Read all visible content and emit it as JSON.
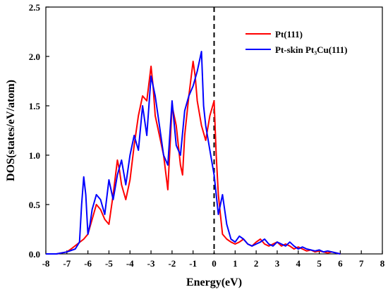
{
  "chart_data": {
    "type": "line",
    "title": "",
    "xlabel": "Energy(eV)",
    "ylabel": "DOS(states/eV/atom)",
    "xlim": [
      -8,
      8
    ],
    "ylim": [
      0,
      2.5
    ],
    "xticks": [
      -8,
      -7,
      -6,
      -5,
      -4,
      -3,
      -2,
      -1,
      0,
      1,
      2,
      3,
      4,
      5,
      6,
      7,
      8
    ],
    "yticks": [
      0.0,
      0.5,
      1.0,
      1.5,
      2.0,
      2.5
    ],
    "ytick_labels": [
      "0.0",
      "0.5",
      "1.0",
      "1.5",
      "2.0",
      "2.5"
    ],
    "fermi_line_x": 0,
    "grid": false,
    "legend_position": "top-right",
    "series": [
      {
        "name": "Pt(111)",
        "color": "#ff0000",
        "x": [
          -8.0,
          -7.5,
          -7.0,
          -6.8,
          -6.5,
          -6.2,
          -6.0,
          -5.8,
          -5.6,
          -5.4,
          -5.2,
          -5.0,
          -4.8,
          -4.6,
          -4.5,
          -4.4,
          -4.2,
          -4.0,
          -3.8,
          -3.6,
          -3.4,
          -3.2,
          -3.0,
          -2.9,
          -2.8,
          -2.6,
          -2.4,
          -2.2,
          -2.0,
          -1.8,
          -1.6,
          -1.5,
          -1.4,
          -1.2,
          -1.0,
          -0.9,
          -0.8,
          -0.6,
          -0.4,
          -0.2,
          0.0,
          0.1,
          0.2,
          0.3,
          0.4,
          0.6,
          0.8,
          1.0,
          1.2,
          1.4,
          1.6,
          1.8,
          2.0,
          2.2,
          2.4,
          2.6,
          2.8,
          3.0,
          3.2,
          3.4,
          3.6,
          3.8,
          4.0,
          4.2,
          4.4,
          4.6,
          4.8,
          5.0,
          5.2,
          5.4,
          5.6,
          5.8,
          6.0
        ],
        "values": [
          0.0,
          0.0,
          0.02,
          0.05,
          0.1,
          0.15,
          0.2,
          0.35,
          0.5,
          0.45,
          0.35,
          0.3,
          0.6,
          0.95,
          0.85,
          0.7,
          0.55,
          0.75,
          1.1,
          1.4,
          1.6,
          1.55,
          1.9,
          1.7,
          1.4,
          1.2,
          1.0,
          0.65,
          1.5,
          1.3,
          0.9,
          0.8,
          1.2,
          1.6,
          1.95,
          1.8,
          1.55,
          1.3,
          1.15,
          1.4,
          1.55,
          1.0,
          0.6,
          0.4,
          0.2,
          0.15,
          0.12,
          0.1,
          0.12,
          0.15,
          0.1,
          0.08,
          0.12,
          0.15,
          0.1,
          0.08,
          0.1,
          0.12,
          0.08,
          0.1,
          0.08,
          0.05,
          0.07,
          0.05,
          0.03,
          0.04,
          0.02,
          0.03,
          0.02,
          0.01,
          0.02,
          0.01,
          0.0
        ]
      },
      {
        "name": "Pt-skin Pt₃Cu(111)",
        "color": "#0000ff",
        "x": [
          -8.0,
          -7.5,
          -7.0,
          -6.6,
          -6.4,
          -6.3,
          -6.2,
          -6.1,
          -6.0,
          -5.9,
          -5.8,
          -5.6,
          -5.4,
          -5.2,
          -5.0,
          -4.8,
          -4.6,
          -4.4,
          -4.2,
          -4.0,
          -3.8,
          -3.6,
          -3.4,
          -3.2,
          -3.0,
          -2.8,
          -2.6,
          -2.4,
          -2.2,
          -2.0,
          -1.8,
          -1.6,
          -1.4,
          -1.2,
          -1.0,
          -0.8,
          -0.6,
          -0.5,
          -0.4,
          -0.2,
          0.0,
          0.2,
          0.4,
          0.6,
          0.8,
          1.0,
          1.2,
          1.4,
          1.6,
          1.8,
          2.0,
          2.2,
          2.4,
          2.6,
          2.8,
          3.0,
          3.2,
          3.4,
          3.6,
          3.8,
          4.0,
          4.2,
          4.4,
          4.6,
          4.8,
          5.0,
          5.2,
          5.4,
          5.6,
          5.8,
          6.0
        ],
        "values": [
          0.0,
          0.0,
          0.02,
          0.05,
          0.12,
          0.5,
          0.78,
          0.6,
          0.2,
          0.3,
          0.45,
          0.6,
          0.55,
          0.4,
          0.75,
          0.55,
          0.8,
          0.95,
          0.7,
          1.0,
          1.2,
          1.05,
          1.5,
          1.2,
          1.8,
          1.6,
          1.3,
          1.0,
          0.9,
          1.55,
          1.1,
          1.0,
          1.45,
          1.6,
          1.7,
          1.85,
          2.05,
          1.5,
          1.3,
          1.05,
          0.8,
          0.4,
          0.6,
          0.3,
          0.15,
          0.12,
          0.18,
          0.15,
          0.1,
          0.08,
          0.1,
          0.12,
          0.15,
          0.1,
          0.08,
          0.12,
          0.1,
          0.08,
          0.12,
          0.08,
          0.05,
          0.07,
          0.05,
          0.04,
          0.03,
          0.04,
          0.02,
          0.03,
          0.02,
          0.01,
          0.0
        ]
      }
    ]
  }
}
